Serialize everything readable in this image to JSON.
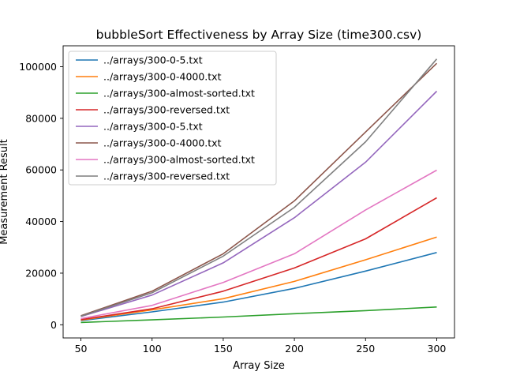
{
  "chart_data": {
    "type": "line",
    "title": "bubbleSort Effectiveness by Array Size (time300.csv)",
    "xlabel": "Array Size",
    "ylabel": "Measurement Result",
    "x": [
      50,
      100,
      150,
      200,
      250,
      300
    ],
    "xlim": [
      37.5,
      312.5
    ],
    "ylim": [
      -5100,
      108100
    ],
    "xticks": [
      50,
      100,
      150,
      200,
      250,
      300
    ],
    "yticks": [
      0,
      20000,
      40000,
      60000,
      80000,
      100000
    ],
    "grid": false,
    "legend_position": "upper-left",
    "series": [
      {
        "name": "../arrays/300-0-5.txt",
        "color": "#1f77b4",
        "values": [
          1600,
          5000,
          8800,
          14100,
          20800,
          28000
        ]
      },
      {
        "name": "../arrays/300-0-4000.txt",
        "color": "#ff7f0e",
        "values": [
          1800,
          5800,
          10100,
          16800,
          25200,
          34000
        ]
      },
      {
        "name": "../arrays/300-almost-sorted.txt",
        "color": "#2ca02c",
        "values": [
          900,
          1900,
          3000,
          4300,
          5500,
          6900
        ]
      },
      {
        "name": "../arrays/300-reversed.txt",
        "color": "#d62728",
        "values": [
          2000,
          6200,
          13000,
          22000,
          33300,
          49200
        ]
      },
      {
        "name": "../arrays/300-0-5.txt",
        "color": "#9467bd",
        "values": [
          3200,
          11500,
          24000,
          41500,
          63000,
          90500
        ]
      },
      {
        "name": "../arrays/300-0-4000.txt",
        "color": "#8c564b",
        "values": [
          3500,
          13000,
          27500,
          48000,
          74700,
          101300
        ]
      },
      {
        "name": "../arrays/300-almost-sorted.txt",
        "color": "#e377c2",
        "values": [
          2400,
          7500,
          16400,
          27500,
          44500,
          59900
        ]
      },
      {
        "name": "../arrays/300-reversed.txt",
        "color": "#7f7f7f",
        "values": [
          3300,
          12400,
          26600,
          45500,
          70900,
          103000
        ]
      }
    ]
  }
}
